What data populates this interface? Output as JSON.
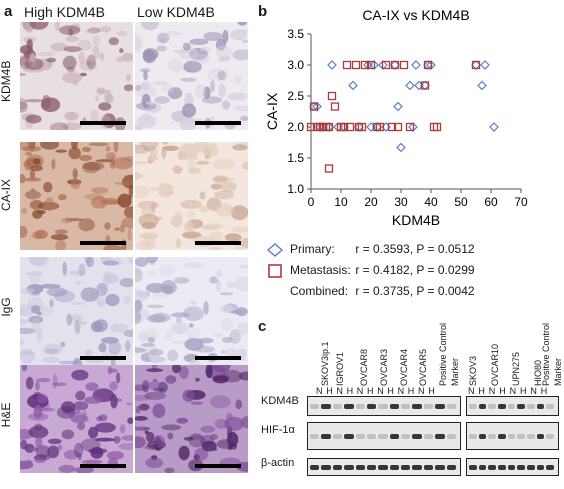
{
  "panel_a": {
    "letter": "a",
    "columns": [
      "High KDM4B",
      "Low KDM4B"
    ],
    "rows": [
      "KDM4B",
      "CA-IX",
      "IgG",
      "H&E"
    ]
  },
  "panel_b": {
    "letter": "b",
    "legend": [
      {
        "label": "Primary:",
        "stat": "r = 0.3593, P = 0.0512",
        "marker": "diamond",
        "color": "#5b7fbf"
      },
      {
        "label": "Metastasis:",
        "stat": "r = 0.4182, P = 0.0299",
        "marker": "square",
        "color": "#b03a3a"
      },
      {
        "label": "Combined:",
        "stat": "r = 0.3735, P = 0.0042",
        "marker": "none",
        "color": "#000000"
      }
    ]
  },
  "chart_data": {
    "type": "scatter",
    "title": "CA-IX vs KDM4B",
    "xlabel": "KDM4B",
    "ylabel": "CA-IX",
    "xlim": [
      0,
      70
    ],
    "ylim": [
      1.0,
      3.5
    ],
    "xticks": [
      "0",
      "10",
      "20",
      "30",
      "40",
      "50",
      "60",
      "70"
    ],
    "yticks": [
      "1.0",
      "1.5",
      "2.0",
      "2.5",
      "3.0",
      "3.5"
    ],
    "series": [
      {
        "name": "Primary",
        "marker": "diamond",
        "color": "#5b7fbf",
        "x": [
          1,
          2,
          3,
          4,
          6,
          7,
          9,
          11,
          14,
          16,
          19,
          20,
          21,
          22,
          24,
          25,
          28,
          29,
          30,
          33,
          34,
          35,
          36,
          38,
          39,
          40,
          55,
          57,
          58,
          61
        ],
        "y": [
          2.33,
          2.33,
          2.0,
          2.0,
          2.0,
          3.0,
          2.0,
          2.0,
          2.67,
          2.0,
          3.0,
          2.0,
          3.0,
          2.0,
          3.0,
          2.0,
          3.0,
          2.33,
          1.67,
          2.67,
          2.0,
          3.0,
          2.67,
          2.67,
          3.0,
          3.0,
          3.0,
          2.67,
          3.0,
          2.0
        ]
      },
      {
        "name": "Metastasis",
        "marker": "square",
        "color": "#b03a3a",
        "x": [
          0,
          1,
          2,
          3,
          4,
          5,
          6,
          6,
          7,
          8,
          10,
          11,
          12,
          13,
          15,
          16,
          17,
          18,
          20,
          22,
          23,
          25,
          27,
          28,
          29,
          31,
          33,
          38,
          39,
          41,
          42,
          55
        ],
        "y": [
          2.0,
          2.33,
          2.0,
          2.0,
          2.0,
          2.0,
          1.33,
          2.0,
          2.5,
          2.33,
          2.0,
          2.0,
          3.0,
          2.0,
          3.0,
          2.0,
          2.0,
          3.0,
          3.0,
          2.0,
          2.0,
          3.0,
          2.0,
          3.0,
          2.0,
          3.0,
          2.0,
          2.67,
          3.0,
          2.0,
          2.0,
          3.0
        ]
      }
    ]
  },
  "panel_c": {
    "letter": "c",
    "left_lanes": [
      "SKOV3ip.1",
      "IGROV1",
      "OVCAR8",
      "OVCAR3",
      "OVCAR4",
      "OVCAR5",
      "Positive Control",
      "Marker"
    ],
    "right_lanes": [
      "SKOV3",
      "OVCAR10",
      "UPN275",
      "HIO80",
      "Positive Control",
      "Marker"
    ],
    "left_nh": [
      "N",
      "H",
      "N",
      "H",
      "N",
      "H",
      "N",
      "H",
      "N",
      "H",
      "N",
      "H"
    ],
    "right_nh": [
      "N",
      "H",
      "N",
      "H",
      "N",
      "H",
      "N",
      "H"
    ],
    "blot_labels": [
      "KDM4B",
      "HIF-1α",
      "β-actin"
    ]
  }
}
